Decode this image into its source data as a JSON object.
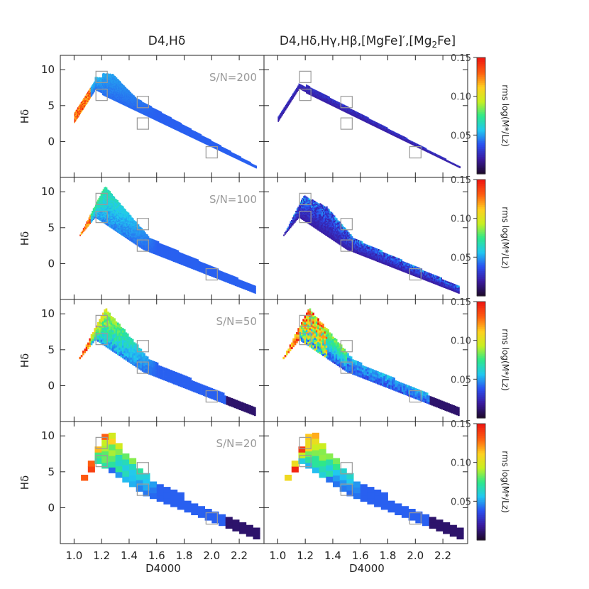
{
  "chart_data": {
    "type": "heatmap",
    "columns": [
      {
        "title_parts": [
          "D4,H",
          "δ"
        ]
      },
      {
        "title_parts": [
          "D4,H",
          "δ",
          ",H",
          "γ",
          ",H",
          "β",
          ",[MgFe]′,[Mg",
          "2",
          "Fe]"
        ]
      }
    ],
    "rows": [
      {
        "sn_label": "S/N=200",
        "sn": 200
      },
      {
        "sn_label": "S/N=100",
        "sn": 100
      },
      {
        "sn_label": "S/N=50",
        "sn": 50
      },
      {
        "sn_label": "S/N=20",
        "sn": 20
      }
    ],
    "xlabel": "D4000",
    "ylabel": "Hδ",
    "xlim": [
      0.9,
      2.38
    ],
    "ylim": [
      -5,
      12
    ],
    "xticks": [
      "1.0",
      "1.2",
      "1.4",
      "1.6",
      "1.8",
      "2.0",
      "2.2"
    ],
    "xtick_values": [
      1.0,
      1.2,
      1.4,
      1.6,
      1.8,
      2.0,
      2.2
    ],
    "yticks": [
      "10",
      "5",
      "0"
    ],
    "ytick_values": [
      10,
      5,
      0
    ],
    "colorbar": {
      "label": "rms log(M*/Lz)",
      "ticks": [
        "0.15",
        "0.10",
        "0.05"
      ],
      "tick_values": [
        0.15,
        0.1,
        0.05
      ],
      "range": [
        0.0,
        0.15
      ]
    },
    "marker_boxes": [
      {
        "x": 1.2,
        "y": 9.0
      },
      {
        "x": 1.2,
        "y": 6.5
      },
      {
        "x": 1.5,
        "y": 5.5
      },
      {
        "x": 1.5,
        "y": 2.5
      },
      {
        "x": 2.0,
        "y": -1.5
      }
    ],
    "colormap": [
      "#1e0a2e",
      "#3a1aa0",
      "#2a50f0",
      "#21c8f0",
      "#2ee88a",
      "#c8f020",
      "#ffd020",
      "#ff6010",
      "#f01a10"
    ]
  }
}
